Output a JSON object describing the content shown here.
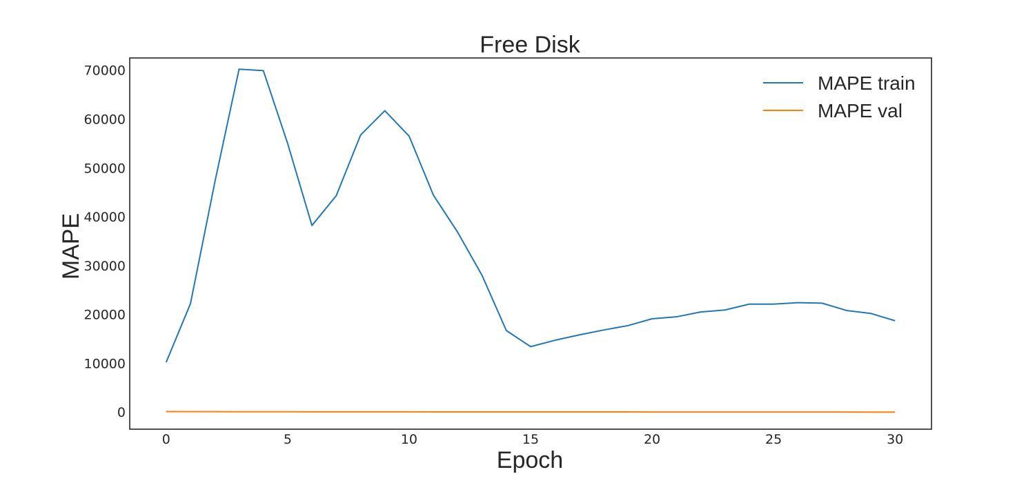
{
  "chart_data": {
    "type": "line",
    "title": "Free Disk",
    "xlabel": "Epoch",
    "ylabel": "MAPE",
    "xlim": [
      -1.5,
      31.5
    ],
    "ylim": [
      -3500,
      72500
    ],
    "xticks": [
      0,
      5,
      10,
      15,
      20,
      25,
      30
    ],
    "yticks": [
      0,
      10000,
      20000,
      30000,
      40000,
      50000,
      60000,
      70000
    ],
    "grid": false,
    "legend_position": "top-right",
    "x": [
      0,
      1,
      2,
      3,
      4,
      5,
      6,
      7,
      8,
      9,
      10,
      11,
      12,
      13,
      14,
      15,
      16,
      17,
      18,
      19,
      20,
      21,
      22,
      23,
      24,
      25,
      26,
      27,
      28,
      29,
      30
    ],
    "series": [
      {
        "name": "MAPE train",
        "color": "#1f77b4",
        "values": [
          10200,
          22200,
          47000,
          70200,
          69900,
          55000,
          38200,
          44300,
          56700,
          61700,
          56500,
          44400,
          36800,
          28000,
          16700,
          13400,
          14700,
          15800,
          16800,
          17700,
          19100,
          19500,
          20500,
          20900,
          22100,
          22100,
          22400,
          22300,
          20800,
          20200,
          18700
        ]
      },
      {
        "name": "MAPE val",
        "color": "#ff7f0e",
        "values": [
          100,
          90,
          80,
          70,
          65,
          60,
          55,
          50,
          48,
          45,
          42,
          40,
          38,
          36,
          34,
          32,
          30,
          28,
          26,
          24,
          22,
          20,
          18,
          16,
          14,
          12,
          10,
          8,
          6,
          4,
          2
        ]
      }
    ]
  }
}
